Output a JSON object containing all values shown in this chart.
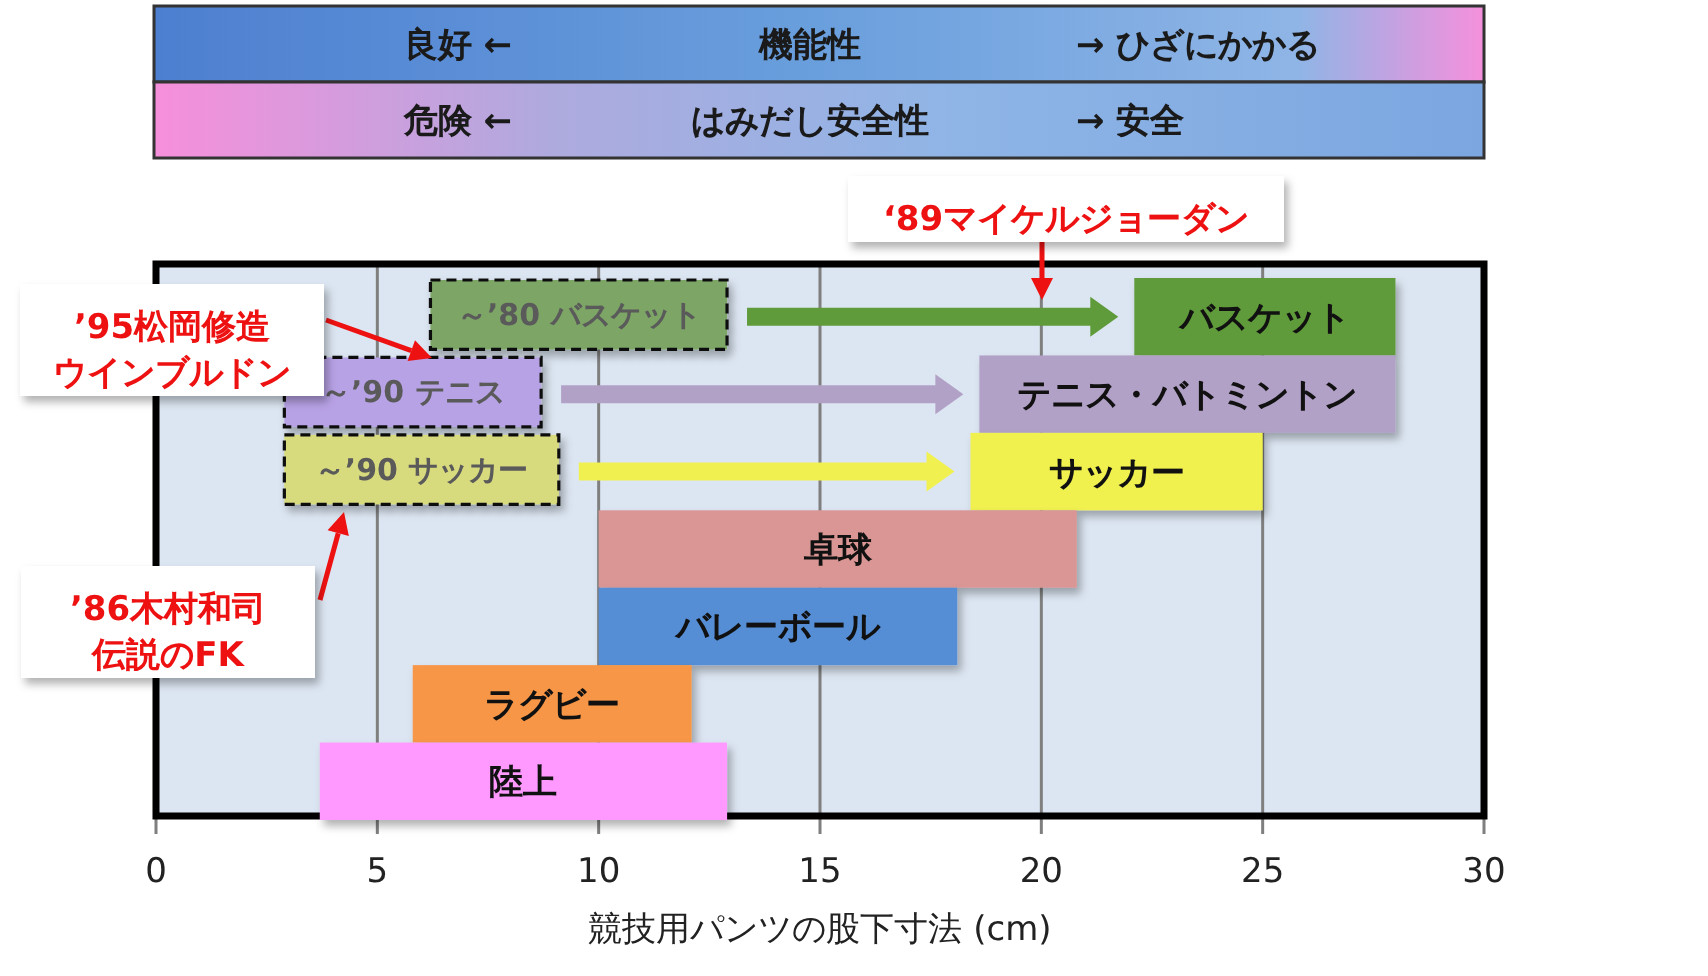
{
  "chart_data": {
    "type": "bar",
    "orientation": "horizontal",
    "categories": [
      "バスケット",
      "テニス・バトミントン",
      "サッカー",
      "卓球",
      "バレーボール",
      "ラグビー",
      "陸上"
    ],
    "series": [
      {
        "colors": [
          "#5f9b3a",
          "#b2a1c7",
          "#f0f050",
          "#da9694",
          "#558ed5",
          "#f79646",
          "#ff99ff"
        ],
        "base": [
          22.1,
          18.6,
          18.4,
          10,
          10,
          5.8,
          3.7
        ],
        "values": [
          5.9,
          9.4,
          6.6,
          10.8,
          8.1,
          6.3,
          9.2
        ]
      },
      {
        "name": "～’80 バスケット",
        "color": "#7ba566",
        "line_style": "dashed",
        "base": [
          6.2,
          null,
          null,
          null,
          null,
          null,
          null
        ],
        "values": [
          6.7,
          null,
          null,
          null,
          null,
          null,
          null
        ]
      },
      {
        "name": "～’90 テニス",
        "color": "#b8a2e6",
        "line_style": "dashed",
        "base": [
          null,
          2.9,
          null,
          null,
          null,
          null,
          null
        ],
        "values": [
          null,
          5.8,
          null,
          null,
          null,
          null,
          null
        ]
      },
      {
        "name": "～’90 サッカー",
        "color": "#d8da7e",
        "line_style": "dashed",
        "base": [
          null,
          null,
          2.9,
          null,
          null,
          null,
          null
        ],
        "values": [
          null,
          null,
          6.2,
          null,
          null,
          null,
          null
        ]
      }
    ],
    "xlim": [
      0,
      30
    ],
    "xticks": [
      0,
      5,
      10,
      15,
      20,
      25,
      30
    ],
    "xlabel": "競技用パンツの股下寸法 (cm)",
    "grid": "x",
    "tick_labels": "x",
    "annotations": [
      "良好 ←",
      "機能性",
      "→ ひざにかかる",
      "危険 ←",
      "はみだし安全性",
      "→ 安全",
      "‘89マイケルジョーダン",
      "’95松岡修造ウインブルドン",
      "’86木村和司伝説のFK"
    ]
  }
}
